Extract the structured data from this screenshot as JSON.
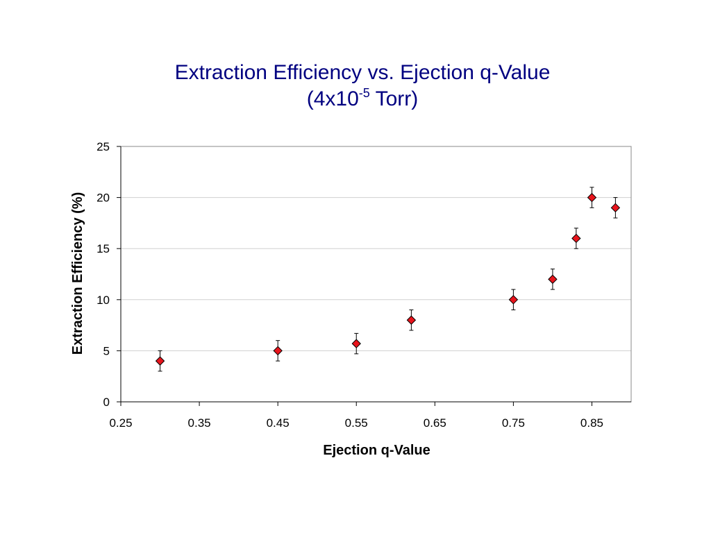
{
  "title": {
    "line1": "Extraction Efficiency vs. Ejection q-Value",
    "line2_prefix": "(4x10",
    "line2_exponent": "-5",
    "line2_suffix": " Torr)"
  },
  "chart_data": {
    "type": "scatter",
    "title": "Extraction Efficiency vs. Ejection q-Value (4x10-5 Torr)",
    "xlabel": "Ejection q-Value",
    "ylabel": "Extraction Efficiency (%)",
    "xlim": [
      0.25,
      0.9
    ],
    "ylim": [
      0,
      25
    ],
    "x_ticks": [
      "0.25",
      "0.35",
      "0.45",
      "0.55",
      "0.65",
      "0.75",
      "0.85"
    ],
    "y_ticks": [
      "0",
      "5",
      "10",
      "15",
      "20",
      "25"
    ],
    "grid": "horizontal",
    "legend": "none",
    "marker": "diamond",
    "marker_color": "#e8141c",
    "series": [
      {
        "x": [
          0.3,
          0.45,
          0.55,
          0.62,
          0.75,
          0.8,
          0.83,
          0.85,
          0.88
        ],
        "y": [
          4,
          5,
          5.7,
          8,
          10,
          12,
          16,
          20,
          19
        ],
        "error": [
          1,
          1,
          1,
          1,
          1,
          1,
          1,
          1,
          1
        ]
      }
    ]
  }
}
